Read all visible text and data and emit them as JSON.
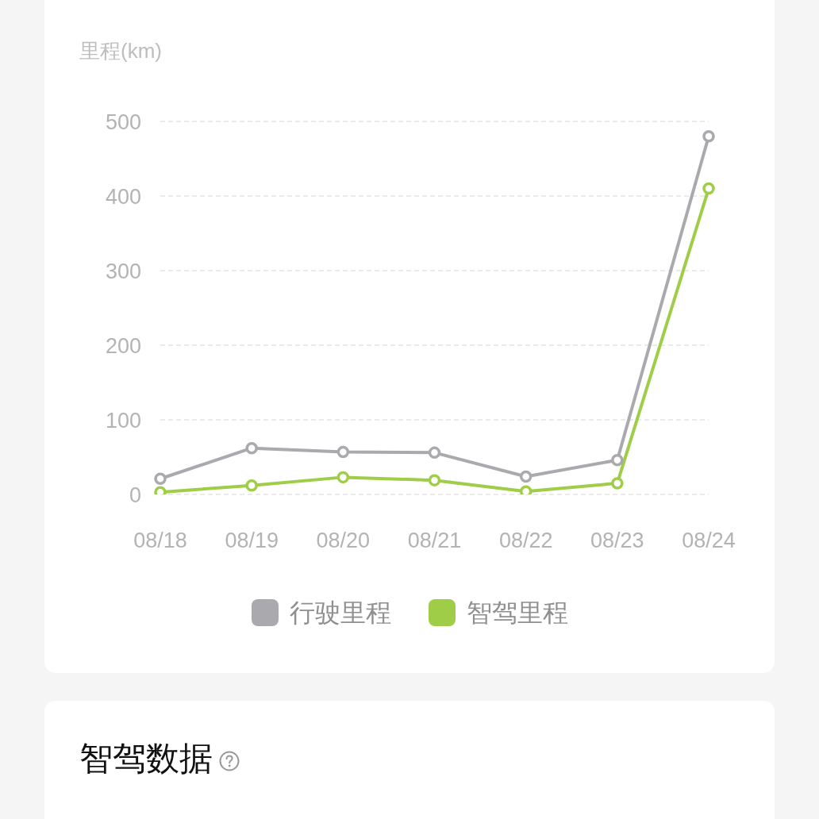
{
  "chart_data": {
    "type": "line",
    "ylabel": "里程(km)",
    "categories": [
      "08/18",
      "08/19",
      "08/20",
      "08/21",
      "08/22",
      "08/23",
      "08/24"
    ],
    "series": [
      {
        "name": "行驶里程",
        "color": "#a9a9ae",
        "values": [
          21,
          62,
          57,
          56,
          24,
          46,
          480
        ]
      },
      {
        "name": "智驾里程",
        "color": "#a0cd48",
        "values": [
          3,
          12,
          23,
          19,
          4,
          15,
          410
        ]
      }
    ],
    "ylim": [
      0,
      500
    ],
    "yticks": [
      0,
      100,
      200,
      300,
      400,
      500
    ],
    "grid": "y",
    "legend": "bottom",
    "marker": "circle",
    "line_style": "solid",
    "annotations": [
      "智驾数据"
    ]
  }
}
